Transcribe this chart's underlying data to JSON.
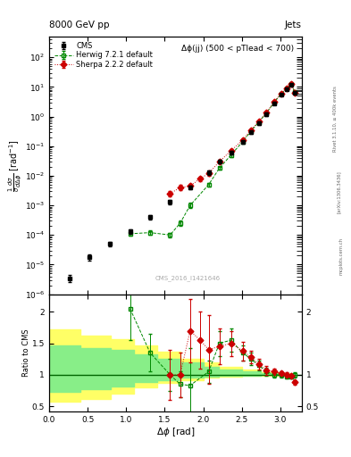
{
  "title": "8000 GeV pp",
  "title_right": "Jets",
  "annotation": "Δϕ(jj) (500 < pTlead < 700)",
  "watermark": "CMS_2016_I1421646",
  "ylabel_main": "$\\frac{1}{\\sigma}\\frac{d\\sigma}{d\\Delta\\phi}$ [rad$^{-1}$]",
  "ylabel_ratio": "Ratio to CMS",
  "xlabel": "$\\Delta\\phi$ [rad]",
  "rivet_text": "Rivet 3.1.10, ≥ 400k events",
  "arxiv_text": "[arXiv:1306.3436]",
  "mcplots_text": "mcplots.cern.ch",
  "cms_x": [
    0.27,
    0.52,
    0.79,
    1.05,
    1.31,
    1.57,
    1.83,
    2.07,
    2.21,
    2.36,
    2.51,
    2.62,
    2.72,
    2.82,
    2.92,
    3.01,
    3.08,
    3.14,
    3.19
  ],
  "cms_y": [
    3.5e-06,
    1.8e-05,
    5e-05,
    0.00013,
    0.0004,
    0.0013,
    0.004,
    0.013,
    0.03,
    0.06,
    0.14,
    0.3,
    0.6,
    1.2,
    2.8,
    5.5,
    8.5,
    12,
    6.5
  ],
  "cms_yerr": [
    1e-06,
    4e-06,
    1e-05,
    2e-05,
    6e-05,
    0.0002,
    0.0006,
    0.002,
    0.004,
    0.008,
    0.02,
    0.04,
    0.08,
    0.15,
    0.3,
    0.5,
    0.8,
    1.0,
    0.6
  ],
  "herwig_x": [
    1.05,
    1.31,
    1.57,
    1.7,
    1.83,
    2.07,
    2.21,
    2.36,
    2.51,
    2.62,
    2.72,
    2.82,
    2.92,
    3.01,
    3.08,
    3.14,
    3.19
  ],
  "herwig_y": [
    0.00011,
    0.00012,
    0.0001,
    0.00025,
    0.001,
    0.005,
    0.018,
    0.05,
    0.14,
    0.32,
    0.65,
    1.3,
    3.0,
    5.8,
    9.0,
    12.5,
    6.8
  ],
  "herwig_yerr": [
    1.5e-05,
    2e-05,
    2e-05,
    5e-05,
    0.0002,
    0.0008,
    0.002,
    0.006,
    0.015,
    0.03,
    0.06,
    0.12,
    0.25,
    0.4,
    0.7,
    0.9,
    0.5
  ],
  "sherpa_x": [
    1.57,
    1.7,
    1.83,
    1.96,
    2.07,
    2.21,
    2.36,
    2.51,
    2.62,
    2.72,
    2.82,
    2.92,
    3.01,
    3.08,
    3.14,
    3.19
  ],
  "sherpa_y": [
    0.0025,
    0.004,
    0.0045,
    0.008,
    0.012,
    0.03,
    0.07,
    0.16,
    0.35,
    0.68,
    1.35,
    3.1,
    5.9,
    9.1,
    12.8,
    6.2
  ],
  "sherpa_yerr": [
    0.0005,
    0.0008,
    0.0008,
    0.0015,
    0.002,
    0.004,
    0.008,
    0.02,
    0.04,
    0.07,
    0.13,
    0.25,
    0.4,
    0.6,
    0.9,
    0.5
  ],
  "herwig_ratio_x": [
    1.05,
    1.31,
    1.57,
    1.7,
    1.83,
    2.07,
    2.21,
    2.36,
    2.51,
    2.62,
    2.72,
    2.82,
    2.92,
    3.01,
    3.08,
    3.14,
    3.19
  ],
  "herwig_ratio_y": [
    2.05,
    1.35,
    1.0,
    0.85,
    0.83,
    1.05,
    1.5,
    1.55,
    1.35,
    1.25,
    1.15,
    1.05,
    1.0,
    1.0,
    0.97,
    0.97,
    1.0
  ],
  "herwig_ratio_yerr": [
    0.5,
    0.3,
    0.25,
    0.2,
    0.6,
    0.18,
    0.2,
    0.18,
    0.12,
    0.1,
    0.08,
    0.06,
    0.05,
    0.04,
    0.03,
    0.03,
    0.04
  ],
  "sherpa_ratio_x": [
    1.57,
    1.7,
    1.83,
    1.96,
    2.07,
    2.21,
    2.36,
    2.51,
    2.62,
    2.72,
    2.82,
    2.92,
    3.01,
    3.08,
    3.14,
    3.19
  ],
  "sherpa_ratio_y": [
    1.0,
    1.0,
    1.7,
    1.55,
    1.4,
    1.45,
    1.5,
    1.38,
    1.28,
    1.17,
    1.07,
    1.05,
    1.02,
    1.0,
    0.98,
    0.88
  ],
  "sherpa_ratio_yerr": [
    0.4,
    0.35,
    0.5,
    0.45,
    0.55,
    0.28,
    0.2,
    0.15,
    0.1,
    0.08,
    0.07,
    0.05,
    0.04,
    0.04,
    0.03,
    0.04
  ],
  "yellow_band_edges": [
    0.0,
    0.4,
    0.8,
    1.1,
    1.4,
    1.7,
    2.0,
    2.2,
    2.5,
    2.75,
    3.0,
    3.14
  ],
  "yellow_band_low": [
    0.58,
    0.62,
    0.7,
    0.8,
    0.87,
    0.92,
    0.95,
    0.97,
    0.98,
    0.99,
    0.995,
    1.0
  ],
  "yellow_band_high": [
    1.72,
    1.62,
    1.56,
    1.46,
    1.36,
    1.26,
    1.19,
    1.13,
    1.08,
    1.04,
    1.02,
    1.0
  ],
  "green_band_edges": [
    0.0,
    0.4,
    0.8,
    1.1,
    1.4,
    1.7,
    2.0,
    2.2,
    2.5,
    2.75,
    3.0,
    3.14
  ],
  "green_band_low": [
    0.73,
    0.77,
    0.82,
    0.88,
    0.92,
    0.95,
    0.97,
    0.98,
    0.99,
    0.995,
    0.998,
    1.0
  ],
  "green_band_high": [
    1.46,
    1.43,
    1.39,
    1.33,
    1.26,
    1.19,
    1.13,
    1.09,
    1.06,
    1.03,
    1.015,
    1.0
  ],
  "cms_color": "#000000",
  "herwig_color": "#008800",
  "sherpa_color": "#cc0000",
  "yellow_color": "#ffff66",
  "green_color": "#88ee88",
  "ratio_line_color": "#006600",
  "xlim": [
    0.0,
    3.28
  ],
  "ylim_main": [
    1e-06,
    500
  ],
  "ylim_ratio": [
    0.42,
    2.28
  ],
  "yticks_ratio": [
    0.5,
    1.0,
    1.5,
    2.0
  ],
  "ytick_ratio_labels": [
    "0.5",
    "1",
    "1.5",
    "2"
  ],
  "yticks_ratio_right": [
    0.5,
    1.0,
    2.0
  ],
  "ytick_ratio_right_labels": [
    "0.5",
    "1",
    "2"
  ]
}
